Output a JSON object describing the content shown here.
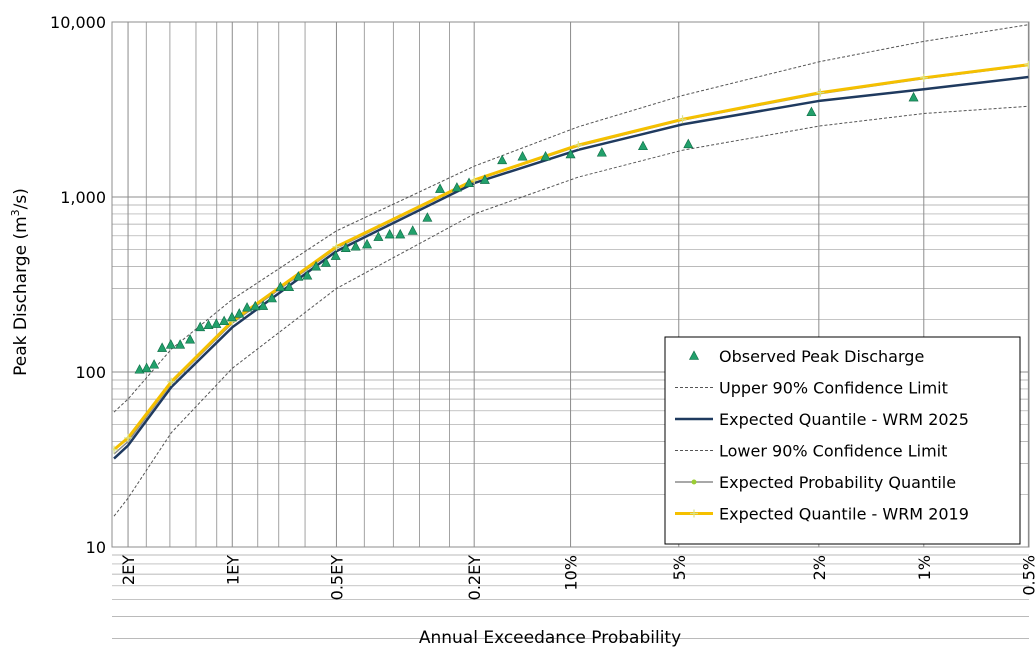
{
  "chart_data": {
    "type": "line",
    "xlabel": "Annual Exceedance Probability",
    "ylabel_main": "Peak Discharge (m",
    "ylabel_sup": "3",
    "ylabel_end": "/s)",
    "y_scale": "log",
    "ylim": [
      10,
      10000
    ],
    "y_ticks": [
      {
        "value": 10,
        "label": "10"
      },
      {
        "value": 100,
        "label": "100"
      },
      {
        "value": 1000,
        "label": "1,000"
      },
      {
        "value": 10000,
        "label": "10,000"
      }
    ],
    "x_scale": "probability (Gumbel-type)",
    "x_ticks": [
      {
        "label": "2EY",
        "aep": 0.8647
      },
      {
        "label": "1EY",
        "aep": 0.6321
      },
      {
        "label": "0.5EY",
        "aep": 0.3935
      },
      {
        "label": "0.2EY",
        "aep": 0.1813
      },
      {
        "label": "10%",
        "aep": 0.1
      },
      {
        "label": "5%",
        "aep": 0.05
      },
      {
        "label": "2%",
        "aep": 0.02
      },
      {
        "label": "1%",
        "aep": 0.01
      },
      {
        "label": "0.5%",
        "aep": 0.005
      }
    ],
    "x_minor_aep": [
      0.83,
      0.78,
      0.72,
      0.67,
      0.57,
      0.52,
      0.46,
      0.34,
      0.29,
      0.25,
      0.21
    ],
    "grid": true,
    "legend_position": "bottom-right",
    "legend": [
      {
        "key": "observed",
        "label": "Observed Peak Discharge"
      },
      {
        "key": "upper",
        "label": "Upper 90% Confidence Limit"
      },
      {
        "key": "wrm2025",
        "label": "Expected Quantile - WRM 2025"
      },
      {
        "key": "lower",
        "label": "Lower 90% Confidence Limit"
      },
      {
        "key": "probq",
        "label": "Expected Probability Quantile"
      },
      {
        "key": "wrm2019",
        "label": "Expected Quantile - WRM 2019"
      }
    ],
    "colors": {
      "observed": "#22a06b",
      "upper": "#555555",
      "lower": "#555555",
      "wrm2025": "#1f3a5f",
      "probq": "#8c8c8c",
      "probq_marker": "#9acd32",
      "wrm2019": "#f5c000",
      "grid": "#8c8c8c"
    },
    "observed": {
      "aep": [
        0.8432,
        0.8293,
        0.814,
        0.797,
        0.778,
        0.757,
        0.734,
        0.71,
        0.69,
        0.671,
        0.652,
        0.633,
        0.615,
        0.596,
        0.576,
        0.557,
        0.536,
        0.516,
        0.496,
        0.475,
        0.455,
        0.436,
        0.415,
        0.395,
        0.375,
        0.356,
        0.335,
        0.315,
        0.296,
        0.279,
        0.26,
        0.239,
        0.222,
        0.201,
        0.187,
        0.17,
        0.153,
        0.135,
        0.117,
        0.1,
        0.082,
        0.063,
        0.047,
        0.021,
        0.0107
      ],
      "value": [
        103,
        105,
        110,
        137,
        143,
        143,
        153,
        180,
        185,
        188,
        195,
        205,
        215,
        233,
        237,
        238,
        263,
        305,
        305,
        350,
        355,
        400,
        420,
        460,
        510,
        520,
        535,
        590,
        610,
        610,
        640,
        760,
        1110,
        1130,
        1200,
        1250,
        1620,
        1700,
        1700,
        1750,
        1790,
        1950,
        2000,
        3050,
        3700
      ]
    },
    "upper": {
      "aep": [
        0.8887,
        0.8647,
        0.7769,
        0.6321,
        0.3935,
        0.1813,
        0.0952,
        0.0488,
        0.0198,
        0.01,
        0.005
      ],
      "value": [
        59,
        70,
        135,
        260,
        640,
        1500,
        2520,
        3800,
        5950,
        7750,
        9650
      ]
    },
    "wrm2025": {
      "aep": [
        0.8887,
        0.8647,
        0.7769,
        0.6321,
        0.3935,
        0.1813,
        0.0952,
        0.0488,
        0.0198,
        0.01,
        0.005
      ],
      "value": [
        32,
        38,
        82,
        180,
        490,
        1200,
        1860,
        2600,
        3550,
        4130,
        4850
      ]
    },
    "lower": {
      "aep": [
        0.8887,
        0.8647,
        0.7769,
        0.6321,
        0.3935,
        0.1813,
        0.0952,
        0.0488,
        0.0198,
        0.01,
        0.005
      ],
      "value": [
        15,
        19,
        45,
        105,
        300,
        800,
        1300,
        1850,
        2550,
        3000,
        3300
      ]
    },
    "probq": {
      "aep": [
        0.8887,
        0.8647,
        0.7769,
        0.6321,
        0.3935,
        0.1813,
        0.0952,
        0.0488,
        0.0198,
        0.01,
        0.005
      ],
      "value": [
        34,
        40,
        86,
        190,
        510,
        1240,
        1950,
        2750,
        3900,
        4750,
        5650
      ]
    },
    "wrm2019": {
      "aep": [
        0.8887,
        0.8647,
        0.7769,
        0.6321,
        0.3935,
        0.1813,
        0.0952,
        0.0488,
        0.0198,
        0.01,
        0.005
      ],
      "value": [
        36,
        42,
        88,
        195,
        520,
        1250,
        1980,
        2780,
        3950,
        4800,
        5700
      ]
    }
  }
}
